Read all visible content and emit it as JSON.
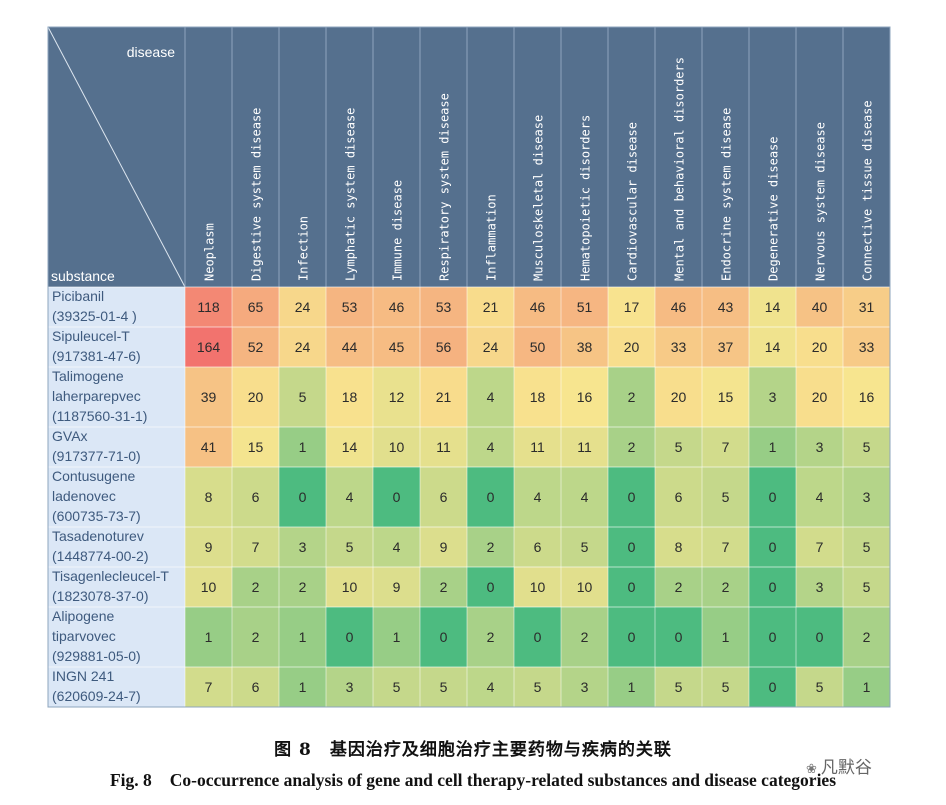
{
  "chart_data": {
    "type": "heatmap",
    "corner": {
      "col_header": "disease",
      "row_header": "substance"
    },
    "columns": [
      "Neoplasm",
      "Digestive system disease",
      "Infection",
      "Lymphatic system disease",
      "Immune disease",
      "Respiratory system disease",
      "Inflammation",
      "Musculoskeletal disease",
      "Hematopoietic disorders",
      "Cardiovascular disease",
      "Mental and behavioral disorders",
      "Endocrine system disease",
      "Degenerative disease",
      "Nervous system disease",
      "Connective tissue disease"
    ],
    "rows": [
      {
        "label": [
          "Picibanil",
          "(39325-01-4 )"
        ],
        "values": [
          118,
          65,
          24,
          53,
          46,
          53,
          21,
          46,
          51,
          17,
          46,
          43,
          14,
          40,
          31
        ]
      },
      {
        "label": [
          "Sipuleucel-T",
          "(917381-47-6)"
        ],
        "values": [
          164,
          52,
          24,
          44,
          45,
          56,
          24,
          50,
          38,
          20,
          33,
          37,
          14,
          20,
          33
        ]
      },
      {
        "label": [
          "Talimogene",
          "laherparepvec",
          "(1187560-31-1)"
        ],
        "values": [
          39,
          20,
          5,
          18,
          12,
          21,
          4,
          18,
          16,
          2,
          20,
          15,
          3,
          20,
          16
        ]
      },
      {
        "label": [
          "GVAx",
          "(917377-71-0)"
        ],
        "values": [
          41,
          15,
          1,
          14,
          10,
          11,
          4,
          11,
          11,
          2,
          5,
          7,
          1,
          3,
          5
        ]
      },
      {
        "label": [
          "Contusugene",
          "ladenovec",
          "(600735-73-7)"
        ],
        "values": [
          8,
          6,
          0,
          4,
          0,
          6,
          0,
          4,
          4,
          0,
          6,
          5,
          0,
          4,
          3
        ]
      },
      {
        "label": [
          "Tasadenoturev",
          "(1448774-00-2)"
        ],
        "values": [
          9,
          7,
          3,
          5,
          4,
          9,
          2,
          6,
          5,
          0,
          8,
          7,
          0,
          7,
          5
        ]
      },
      {
        "label": [
          "Tisagenlecleucel-T",
          "(1823078-37-0)"
        ],
        "values": [
          10,
          2,
          2,
          10,
          9,
          2,
          0,
          10,
          10,
          0,
          2,
          2,
          0,
          3,
          5
        ]
      },
      {
        "label": [
          "Alipogene",
          "tiparvovec",
          "(929881-05-0)"
        ],
        "values": [
          1,
          2,
          1,
          0,
          1,
          0,
          2,
          0,
          2,
          0,
          0,
          1,
          0,
          0,
          2
        ]
      },
      {
        "label": [
          "INGN 241",
          "(620609-24-7)"
        ],
        "values": [
          7,
          6,
          1,
          3,
          5,
          5,
          4,
          5,
          3,
          1,
          5,
          5,
          0,
          5,
          1
        ]
      }
    ],
    "color_scale": {
      "low": "#4dbb80",
      "mid": "#f8e58f",
      "high": "#f2736e"
    }
  },
  "colors": {
    "header_bg": "#55708e",
    "label_bg": "#dbe7f6",
    "header_text": "#ffffff",
    "label_text": "#3e5a7e",
    "value_text": "#2b2b2b"
  },
  "caption": {
    "cn": "图 8　基因治疗及细胞治疗主要药物与疾病的关联",
    "en_label": "Fig. 8",
    "en": "Co-occurrence analysis of gene and cell therapy-related substances and disease categories"
  },
  "watermark": "凡默谷"
}
